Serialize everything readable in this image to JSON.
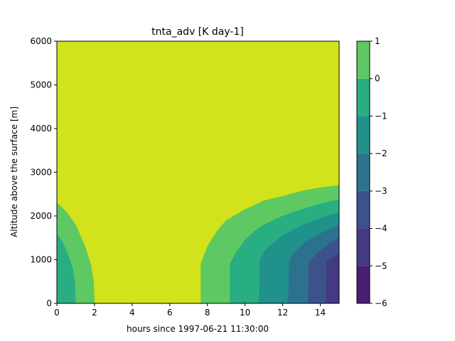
{
  "chart_data": {
    "type": "contourf",
    "title": "tnta_adv [K day-1]",
    "xlabel": "hours since 1997-06-21 11:30:00",
    "ylabel": "Altitude above the surface [m]",
    "xlim": [
      0,
      15
    ],
    "ylim": [
      0,
      6000
    ],
    "x_ticks": [
      "0",
      "2",
      "4",
      "6",
      "8",
      "10",
      "12",
      "14"
    ],
    "x_tick_values": [
      0,
      2,
      4,
      6,
      8,
      10,
      12,
      14
    ],
    "y_ticks": [
      "0",
      "1000",
      "2000",
      "3000",
      "4000",
      "5000",
      "6000"
    ],
    "y_tick_values": [
      0,
      1000,
      2000,
      3000,
      4000,
      5000,
      6000
    ],
    "colorbar": {
      "levels": [
        -6,
        -5,
        -4,
        -3,
        -2,
        -1,
        0,
        1
      ],
      "tick_labels": [
        "−6",
        "−5",
        "−4",
        "−3",
        "−2",
        "−1",
        "0",
        "1"
      ],
      "colors": [
        "#481f70",
        "#443983",
        "#3b528b",
        "#2c728e",
        "#21918c",
        "#28ae80",
        "#5ec962",
        "#d2e21b"
      ]
    },
    "regions": [
      {
        "level": [
          0,
          1
        ],
        "color": "#d2e21b",
        "polygon": [
          [
            0,
            0
          ],
          [
            15,
            0
          ],
          [
            15,
            6000
          ],
          [
            0,
            6000
          ]
        ]
      },
      {
        "level": [
          -1,
          0
        ],
        "color": "#5ec962",
        "polygon": [
          [
            0,
            0
          ],
          [
            0,
            2300
          ],
          [
            0.5,
            2100
          ],
          [
            1,
            1800
          ],
          [
            1.5,
            1300
          ],
          [
            1.8,
            900
          ],
          [
            1.95,
            500
          ],
          [
            2.0,
            0
          ]
        ]
      },
      {
        "level": [
          -2,
          -1
        ],
        "color": "#28ae80",
        "polygon": [
          [
            0,
            0
          ],
          [
            0,
            1600
          ],
          [
            0.3,
            1400
          ],
          [
            0.6,
            1100
          ],
          [
            0.85,
            800
          ],
          [
            0.95,
            500
          ],
          [
            1.0,
            0
          ]
        ]
      },
      {
        "level": [
          -1,
          0
        ],
        "color": "#5ec962",
        "polygon": [
          [
            7.65,
            0
          ],
          [
            7.65,
            900
          ],
          [
            8,
            1300
          ],
          [
            8.5,
            1650
          ],
          [
            9,
            1900
          ],
          [
            10,
            2150
          ],
          [
            11,
            2350
          ],
          [
            12,
            2450
          ],
          [
            13,
            2570
          ],
          [
            14,
            2650
          ],
          [
            15,
            2700
          ],
          [
            15,
            0
          ]
        ]
      },
      {
        "level": [
          -2,
          -1
        ],
        "color": "#28ae80",
        "polygon": [
          [
            9.2,
            0
          ],
          [
            9.2,
            900
          ],
          [
            9.5,
            1150
          ],
          [
            10,
            1450
          ],
          [
            10.5,
            1650
          ],
          [
            11,
            1800
          ],
          [
            12,
            2000
          ],
          [
            13,
            2150
          ],
          [
            14,
            2280
          ],
          [
            15,
            2380
          ],
          [
            15,
            0
          ]
        ]
      },
      {
        "level": [
          -3,
          -2
        ],
        "color": "#21918c",
        "polygon": [
          [
            10.75,
            0
          ],
          [
            10.8,
            1000
          ],
          [
            11,
            1180
          ],
          [
            11.5,
            1380
          ],
          [
            12,
            1550
          ],
          [
            13,
            1780
          ],
          [
            14,
            1950
          ],
          [
            15,
            2080
          ],
          [
            15,
            0
          ]
        ]
      },
      {
        "level": [
          -4,
          -3
        ],
        "color": "#2c728e",
        "polygon": [
          [
            12.3,
            0
          ],
          [
            12.35,
            1000
          ],
          [
            12.7,
            1200
          ],
          [
            13.2,
            1400
          ],
          [
            14,
            1600
          ],
          [
            15,
            1800
          ],
          [
            15,
            0
          ]
        ]
      },
      {
        "level": [
          -5,
          -4
        ],
        "color": "#3b528b",
        "polygon": [
          [
            13.35,
            0
          ],
          [
            13.4,
            950
          ],
          [
            13.8,
            1130
          ],
          [
            14.4,
            1350
          ],
          [
            15,
            1500
          ],
          [
            15,
            0
          ]
        ]
      },
      {
        "level": [
          -6,
          -5
        ],
        "color": "#443983",
        "polygon": [
          [
            14.3,
            0
          ],
          [
            14.35,
            950
          ],
          [
            14.6,
            1050
          ],
          [
            14.8,
            1100
          ],
          [
            15,
            1130
          ],
          [
            15,
            0
          ]
        ]
      }
    ]
  }
}
